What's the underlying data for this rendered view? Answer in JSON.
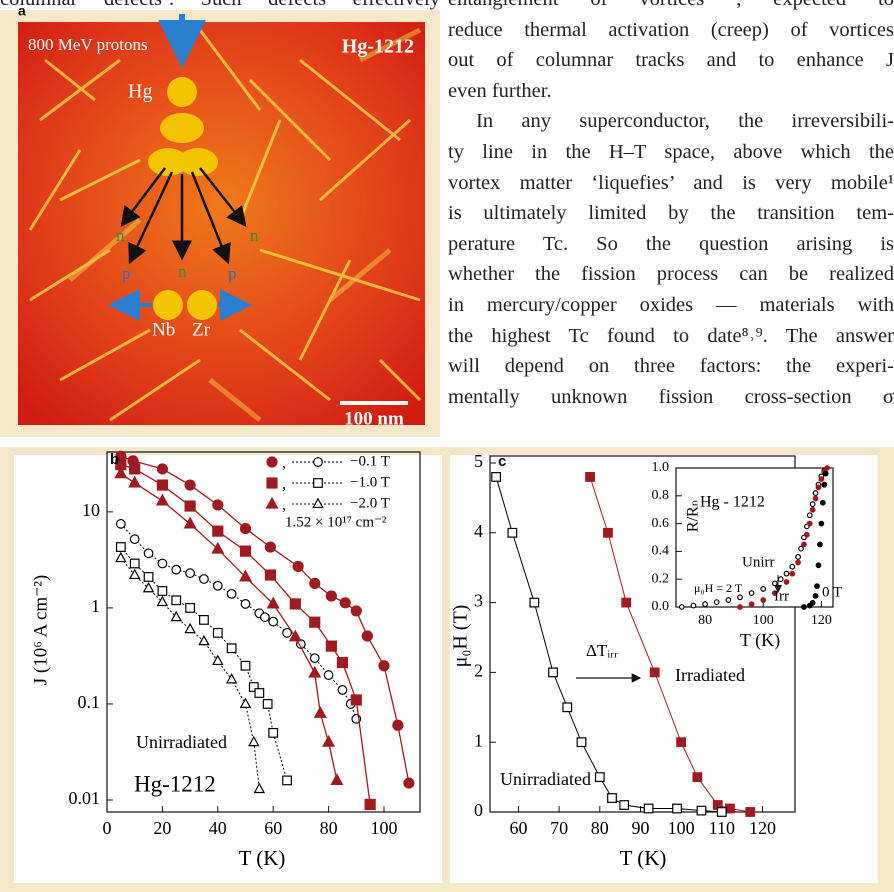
{
  "text": {
    "left_column_top": "columnar defects’. Such defects effectively",
    "paragraphs": [
      [
        "entanglement of vortices , expected to",
        "reduce thermal activation (creep) of vortices",
        "out of columnar tracks and to enhance J",
        "even further."
      ],
      [
        "In any superconductor, the irreversibili-",
        "ty line in the H–T space, above which the",
        "vortex matter ‘liquefies’ and is very mobile¹",
        "is ultimately limited by the transition tem-",
        "perature Tc. So the question arising is",
        "whether the fission process can be realized",
        "in mercury/copper oxides — materials with",
        "the highest Tc found to date⁸˒⁹. The answer",
        "will depend on three factors: the experi-",
        "mentally unknown fission cross-section σ"
      ]
    ]
  },
  "figure_a": {
    "label": "a",
    "beam": "800 MeV protons",
    "material": "Hg-1212",
    "nucleus": "Hg",
    "fragments": [
      "Nb",
      "Zr"
    ],
    "particles": [
      "n",
      "p",
      "n",
      "p",
      "n"
    ],
    "scale_bar": "100 nm"
  },
  "chart_data": [
    {
      "type": "line",
      "label": "b",
      "log_y": true,
      "xlim": [
        0,
        113
      ],
      "ylim": [
        0.0075,
        42
      ],
      "xticks": [
        0,
        20,
        40,
        60,
        80,
        100
      ],
      "yticks": [
        0.01,
        0.1,
        1,
        10
      ],
      "xlabel": "T (K)",
      "ylabel": "J (10⁶ A cm⁻²)",
      "legend_joiner": ",",
      "fluence": "1.52 × 10¹⁷ cm⁻²",
      "unirradiated_label": "Unirradiated",
      "material": "Hg-1212",
      "irradiated_color": "#9e1b20",
      "unirradiated_color": "#000000",
      "series": [
        {
          "name": "−0.1 T",
          "marker": "circle",
          "irradiated": {
            "x": [
              5,
              9.4,
              20,
              30,
              40,
              50,
              59,
              69,
              75,
              81,
              86,
              90,
              94,
              100,
              105,
              109
            ],
            "values": [
              38,
              34,
              28,
              19,
              11.8,
              6.7,
              4.3,
              2.7,
              1.8,
              1.33,
              1.13,
              0.93,
              0.51,
              0.25,
              0.06,
              0.015
            ]
          },
          "unirradiated": {
            "x": [
              5,
              10,
              15,
              20,
              25,
              30,
              35,
              40,
              45,
              50,
              55,
              57,
              60,
              65,
              70,
              75,
              80,
              85,
              88,
              90
            ],
            "values": [
              7.5,
              5.2,
              3.7,
              2.9,
              2.5,
              2.3,
              2,
              1.7,
              1.4,
              1.1,
              0.88,
              0.8,
              0.72,
              0.55,
              0.42,
              0.3,
              0.2,
              0.14,
              0.1,
              0.07
            ]
          }
        },
        {
          "name": "−1.0 T",
          "marker": "square",
          "irradiated": {
            "x": [
              5,
              10,
              20,
              30,
              40,
              50,
              59,
              68,
              75,
              81,
              85,
              90,
              95
            ],
            "values": [
              31,
              28,
              19,
              11.5,
              6.3,
              3.9,
              2.2,
              1.1,
              0.71,
              0.4,
              0.27,
              0.11,
              0.009
            ]
          },
          "unirradiated": {
            "x": [
              5,
              10,
              15,
              20,
              25,
              30,
              35,
              40,
              45,
              50,
              53,
              55,
              58,
              60,
              65
            ],
            "values": [
              4.3,
              2.9,
              2.1,
              1.5,
              1.2,
              1,
              0.75,
              0.55,
              0.38,
              0.25,
              0.15,
              0.13,
              0.1,
              0.05,
              0.016
            ]
          }
        },
        {
          "name": "−2.0 T",
          "marker": "triangle",
          "irradiated": {
            "x": [
              5,
              10,
              20,
              30,
              40,
              50,
              60,
              68,
              75,
              77,
              80,
              83
            ],
            "values": [
              25,
              20,
              13,
              7.5,
              4.1,
              2.1,
              1.1,
              0.5,
              0.21,
              0.08,
              0.04,
              0.016
            ]
          },
          "unirradiated": {
            "x": [
              5,
              10,
              15,
              20,
              25,
              30,
              35,
              40,
              45,
              50,
              53,
              55
            ],
            "values": [
              3.3,
              2.2,
              1.6,
              1.15,
              0.8,
              0.6,
              0.45,
              0.28,
              0.18,
              0.1,
              0.04,
              0.013
            ]
          }
        }
      ]
    },
    {
      "type": "line",
      "label": "c",
      "xlim": [
        53,
        128
      ],
      "ylim": [
        0,
        5.1
      ],
      "xticks": [
        60,
        70,
        80,
        90,
        100,
        110,
        120
      ],
      "yticks": [
        0,
        1,
        2,
        3,
        4,
        5
      ],
      "xlabel": "T (K)",
      "ylabel": "μ₀H (T)",
      "shift_label": "ΔTᵢᵣᵣ",
      "series": [
        {
          "name": "Irradiated",
          "color": "#9e1b20",
          "filled": true,
          "x": [
            77.6,
            82,
            86.5,
            93.5,
            100,
            104,
            109,
            112,
            117
          ],
          "values": [
            4.8,
            4,
            3,
            2,
            1,
            0.5,
            0.1,
            0.05,
            0
          ]
        },
        {
          "name": "Unirradiated",
          "color": "#000000",
          "filled": false,
          "x": [
            54.5,
            58.5,
            63.9,
            68.5,
            72,
            75.5,
            80,
            83,
            86,
            92,
            99,
            105,
            110
          ],
          "values": [
            4.8,
            4,
            3,
            2,
            1.5,
            1,
            0.5,
            0.2,
            0.1,
            0.05,
            0.05,
            0.02,
            0
          ]
        }
      ]
    },
    {
      "type": "scatter",
      "title": "Hg - 1212",
      "xlim": [
        70,
        124
      ],
      "ylim": [
        0,
        1
      ],
      "xticks": [
        80,
        100,
        120
      ],
      "yticks": [
        {
          "value": 0,
          "label": "0.0"
        },
        0.2,
        0.4,
        0.6,
        0.8,
        {
          "value": 1,
          "label": "1.0"
        }
      ],
      "xlabel": "T (K)",
      "ylabel": "R/Rₙ",
      "field_label": "μ₀H = 2 T",
      "series": [
        {
          "name": "Unirr",
          "color": "#000000",
          "filled": false,
          "x": [
            72,
            76,
            80,
            84,
            88,
            92,
            96,
            100,
            104,
            106,
            108,
            110,
            112,
            113,
            114,
            115,
            116,
            117,
            118,
            119,
            120,
            121
          ],
          "values": [
            0,
            0.01,
            0.02,
            0.035,
            0.05,
            0.07,
            0.1,
            0.13,
            0.17,
            0.2,
            0.24,
            0.29,
            0.36,
            0.42,
            0.5,
            0.58,
            0.66,
            0.74,
            0.82,
            0.88,
            0.94,
            0.98
          ]
        },
        {
          "name": "Irr",
          "color": "#9e1b20",
          "filled": true,
          "x": [
            92,
            96,
            100,
            104,
            108,
            110,
            112,
            114,
            115,
            116,
            117,
            118,
            119,
            120,
            121,
            122
          ],
          "values": [
            0,
            0.02,
            0.05,
            0.1,
            0.18,
            0.24,
            0.32,
            0.45,
            0.52,
            0.6,
            0.7,
            0.78,
            0.86,
            0.92,
            0.97,
            1
          ]
        },
        {
          "name": "0 T",
          "color": "#000000",
          "filled": true,
          "x": [
            114,
            116,
            117,
            118,
            118.5,
            119,
            119.5,
            120,
            120.5,
            121,
            121.5
          ],
          "values": [
            0,
            0.01,
            0.03,
            0.08,
            0.15,
            0.3,
            0.45,
            0.6,
            0.75,
            0.88,
            0.96
          ]
        }
      ]
    }
  ]
}
